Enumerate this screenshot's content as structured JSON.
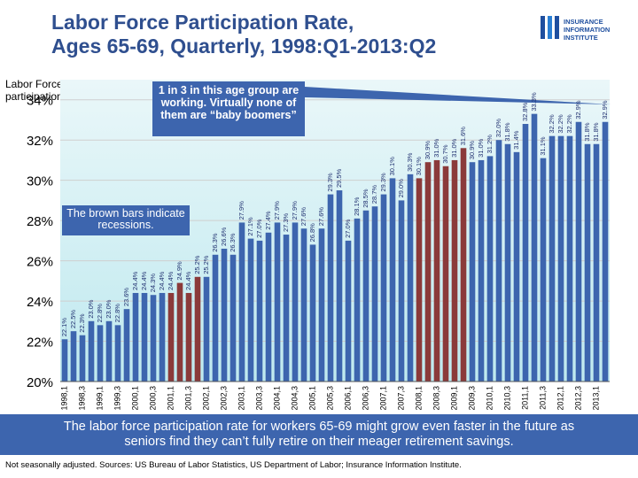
{
  "title": {
    "line1": "Labor Force Participation Rate,",
    "line2": "Ages 65-69, Quarterly, 1998:Q1-2013:Q2"
  },
  "logo": {
    "line1": "INSURANCE",
    "line2": "INFORMATION",
    "line3": "INSTITUTE"
  },
  "y_axis_label": {
    "line1": "Labor Force",
    "line2": "participation rate"
  },
  "callout_text": "1 in 3 in this age group are working. Virtually none of them are “baby boomers”",
  "recession_note": "The brown bars indicate recessions.",
  "footer": {
    "line1": "The labor force participation rate for workers 65-69 might grow even faster in the future as",
    "line2": "seniors find they can’t fully retire on their meager retirement savings."
  },
  "source": "Not seasonally adjusted. Sources: US Bureau of Labor Statistics, US Department of Labor; Insurance Information Institute.",
  "colors": {
    "normal_bar": "#3d65ae",
    "recession_bar": "#8b3a3a",
    "background_top": "#eaf7f9",
    "background_bottom": "#bfe9ef"
  },
  "chart_data": {
    "type": "bar",
    "title": "Labor Force Participation Rate, Ages 65-69, Quarterly, 1998:Q1-2013:Q2",
    "ylabel": "Labor Force participation rate",
    "ylim": [
      20,
      35
    ],
    "yticks": [
      "20%",
      "22%",
      "24%",
      "26%",
      "28%",
      "30%",
      "32%",
      "34%"
    ],
    "ytick_values": [
      20,
      22,
      24,
      26,
      28,
      30,
      32,
      34
    ],
    "grid": true,
    "categories": [
      "1998,1",
      "1998,2",
      "1998,3",
      "1998,4",
      "1999,1",
      "1999,2",
      "1999,3",
      "1999,4",
      "2000,1",
      "2000,2",
      "2000,3",
      "2000,4",
      "2001,1",
      "2001,2",
      "2001,3",
      "2001,4",
      "2002,1",
      "2002,2",
      "2002,3",
      "2002,4",
      "2003,1",
      "2003,2",
      "2003,3",
      "2003,4",
      "2004,1",
      "2004,2",
      "2004,3",
      "2004,4",
      "2005,1",
      "2005,2",
      "2005,3",
      "2005,4",
      "2006,1",
      "2006,2",
      "2006,3",
      "2006,4",
      "2007,1",
      "2007,2",
      "2007,3",
      "2007,4",
      "2008,1",
      "2008,2",
      "2008,3",
      "2008,4",
      "2009,1",
      "2009,2",
      "2009,3",
      "2009,4",
      "2010,1",
      "2010,2",
      "2010,3",
      "2010,4",
      "2011,1",
      "2011,2",
      "2011,3",
      "2011,4",
      "2012,1",
      "2012,2",
      "2012,3",
      "2012,4",
      "2013,1",
      "2013,2"
    ],
    "xtick_labels": [
      "1998,1",
      "1998,3",
      "1999,1",
      "1999,3",
      "2000,1",
      "2000,3",
      "2001,1",
      "2001,3",
      "2002,1",
      "2002,3",
      "2003,1",
      "2003,3",
      "2004,1",
      "2004,3",
      "2005,1",
      "2005,3",
      "2006,1",
      "2006,3",
      "2007,1",
      "2007,3",
      "2008,1",
      "2008,3",
      "2009,1",
      "2009,3",
      "2010,1",
      "2010,3",
      "2011,1",
      "2011,3",
      "2012,1",
      "2012,3",
      "2013,1"
    ],
    "values": [
      22.1,
      22.5,
      22.3,
      23.0,
      22.8,
      23.0,
      22.8,
      23.6,
      24.4,
      24.4,
      24.3,
      24.4,
      24.4,
      24.9,
      24.4,
      25.2,
      25.2,
      26.3,
      26.6,
      26.3,
      27.9,
      27.1,
      27.0,
      27.4,
      27.9,
      27.3,
      27.9,
      27.6,
      26.8,
      27.6,
      29.3,
      29.5,
      27.0,
      28.1,
      28.5,
      28.7,
      29.3,
      30.1,
      29.0,
      30.3,
      30.1,
      30.9,
      31.0,
      30.7,
      31.0,
      31.6,
      30.9,
      31.0,
      31.2,
      32.0,
      31.8,
      31.4,
      32.8,
      33.3,
      31.1,
      32.2,
      32.2,
      32.2,
      32.9,
      31.8,
      31.8,
      32.9
    ],
    "labels": [
      "22.1%",
      "22.5%",
      "22.3%",
      "23.0%",
      "22.8%",
      "23.0%",
      "22.8%",
      "23.6%",
      "24.4%",
      "24.4%",
      "24.3%",
      "24.4%",
      "24.4%",
      "24.9%",
      "24.4%",
      "25.2%",
      "25.2%",
      "26.3%",
      "26.6%",
      "26.3%",
      "27.9%",
      "27.1%",
      "27.0%",
      "27.4%",
      "27.9%",
      "27.3%",
      "27.9%",
      "27.6%",
      "26.8%",
      "27.6%",
      "29.3%",
      "29.5%",
      "27.0%",
      "28.1%",
      "28.5%",
      "28.7%",
      "29.3%",
      "30.1%",
      "29.0%",
      "30.3%",
      "30.1%",
      "30.9%",
      "31.0%",
      "30.7%",
      "31.0%",
      "31.6%",
      "30.9%",
      "31.0%",
      "31.2%",
      "32.0%",
      "31.8%",
      "31.4%",
      "32.8%",
      "33.3%",
      "31.1%",
      "32.2%",
      "32.2%",
      "32.2%",
      "32.9%",
      "31.8%",
      "31.8%",
      "32.9%"
    ],
    "recession": [
      false,
      false,
      false,
      false,
      false,
      false,
      false,
      false,
      false,
      false,
      false,
      false,
      true,
      true,
      true,
      true,
      false,
      false,
      false,
      false,
      false,
      false,
      false,
      false,
      false,
      false,
      false,
      false,
      false,
      false,
      false,
      false,
      false,
      false,
      false,
      false,
      false,
      false,
      false,
      false,
      true,
      true,
      true,
      true,
      true,
      true,
      false,
      false,
      false,
      false,
      false,
      false,
      false,
      false,
      false,
      false,
      false,
      false,
      false,
      false,
      false,
      false
    ]
  }
}
